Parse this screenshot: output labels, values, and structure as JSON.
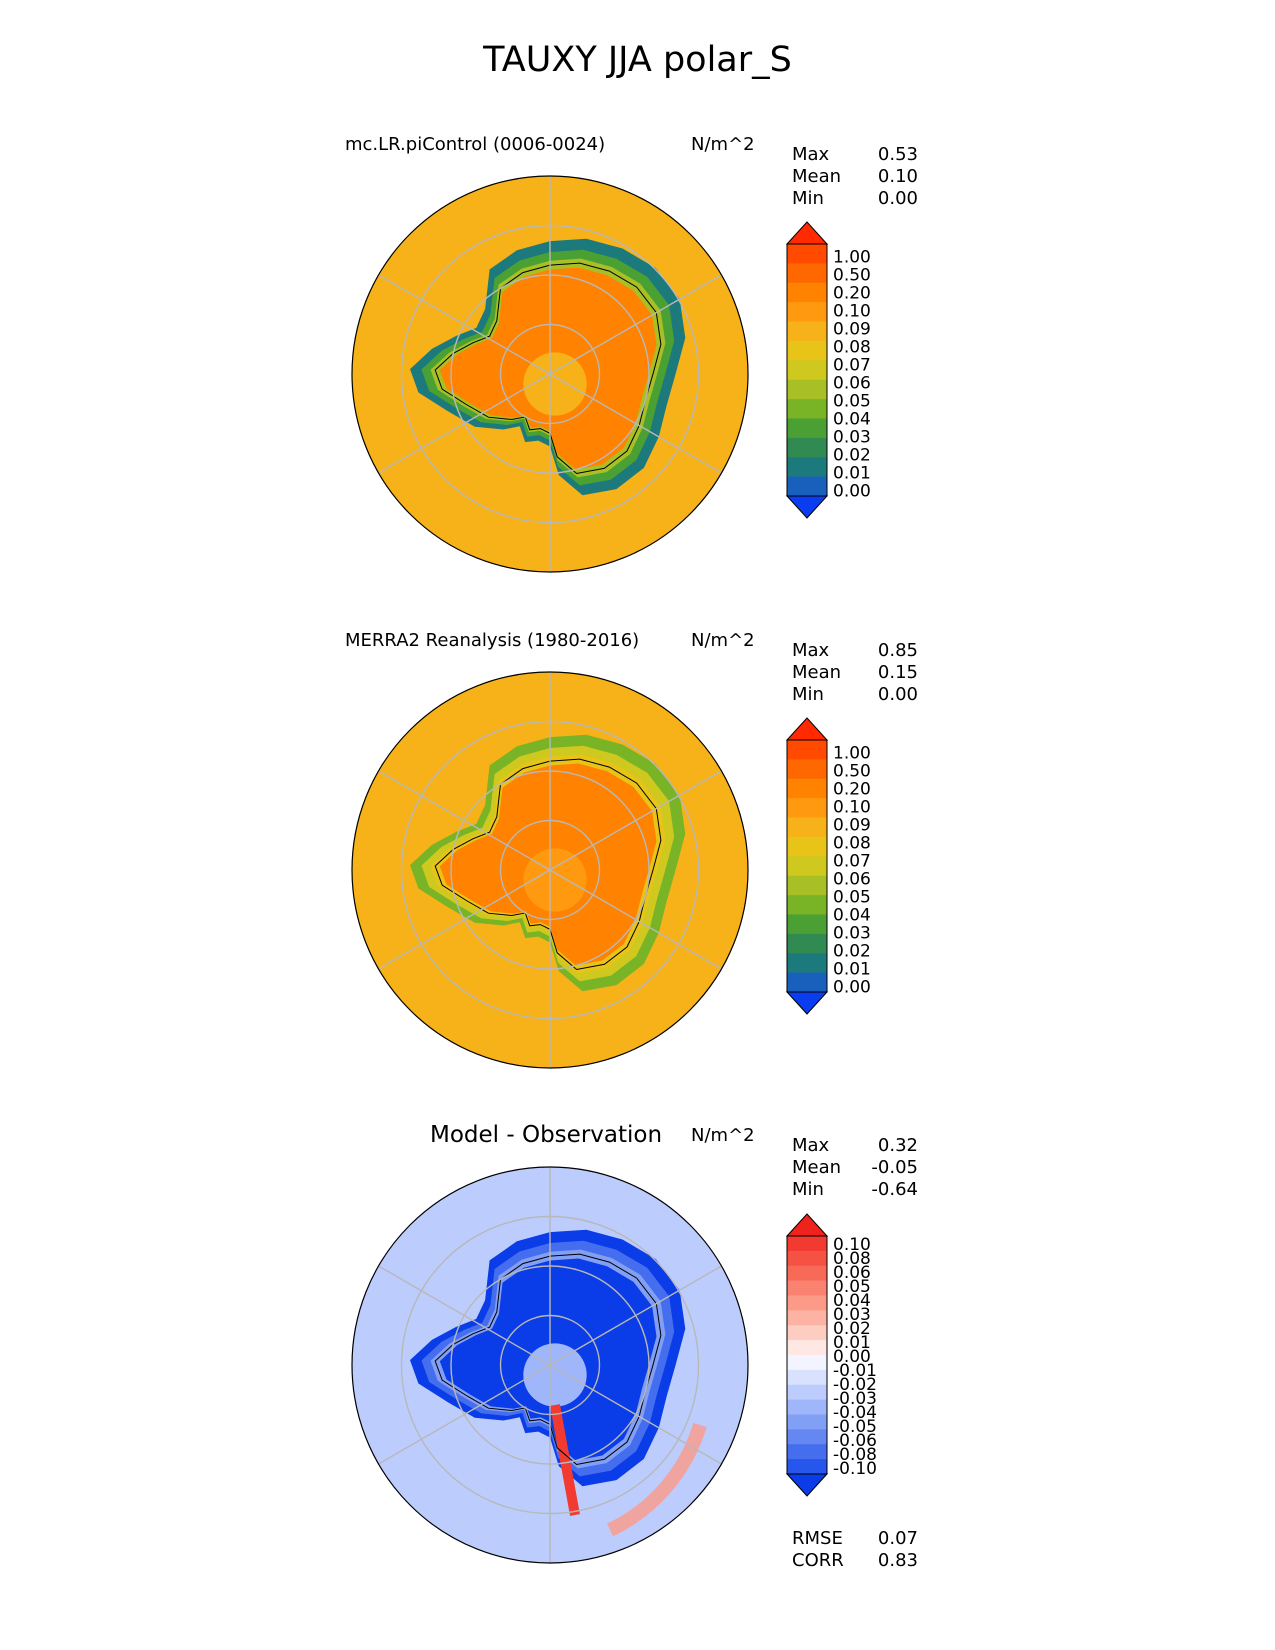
{
  "title": "TAUXY JJA polar_S",
  "panels": [
    {
      "id": "test",
      "title": "mc.LR.piControl (0006-0024)",
      "units": "N/m^2",
      "stats": [
        {
          "label": "Max",
          "value": "0.53"
        },
        {
          "label": "Mean",
          "value": "0.10"
        },
        {
          "label": "Min",
          "value": "0.00"
        }
      ],
      "colorbar": {
        "labels": [
          "1.00",
          "0.50",
          "0.20",
          "0.10",
          "0.09",
          "0.08",
          "0.07",
          "0.06",
          "0.05",
          "0.04",
          "0.03",
          "0.02",
          "0.01",
          "0.00"
        ],
        "colors": [
          "#ff2a00",
          "#ff4a00",
          "#ff6800",
          "#ff8200",
          "#ff9a10",
          "#f7b21a",
          "#e8c418",
          "#cfc81e",
          "#a8c026",
          "#79b426",
          "#4aa032",
          "#318a52",
          "#1c7a7c",
          "#1860bc",
          "#0a3cf0"
        ]
      },
      "field": "model"
    },
    {
      "id": "reference",
      "title": "MERRA2 Reanalysis (1980-2016)",
      "units": "N/m^2",
      "stats": [
        {
          "label": "Max",
          "value": "0.85"
        },
        {
          "label": "Mean",
          "value": "0.15"
        },
        {
          "label": "Min",
          "value": "0.00"
        }
      ],
      "colorbar": {
        "labels": [
          "1.00",
          "0.50",
          "0.20",
          "0.10",
          "0.09",
          "0.08",
          "0.07",
          "0.06",
          "0.05",
          "0.04",
          "0.03",
          "0.02",
          "0.01",
          "0.00"
        ],
        "colors": [
          "#ff2a00",
          "#ff4a00",
          "#ff6800",
          "#ff8200",
          "#ff9a10",
          "#f7b21a",
          "#e8c418",
          "#cfc81e",
          "#a8c026",
          "#79b426",
          "#4aa032",
          "#318a52",
          "#1c7a7c",
          "#1860bc",
          "#0a3cf0"
        ]
      },
      "field": "obs"
    },
    {
      "id": "diff",
      "title": "Model - Observation",
      "units": "N/m^2",
      "stats": [
        {
          "label": "Max",
          "value": "0.32"
        },
        {
          "label": "Mean",
          "value": "-0.05"
        },
        {
          "label": "Min",
          "value": "-0.64"
        }
      ],
      "metrics": [
        {
          "label": "RMSE",
          "value": "0.07"
        },
        {
          "label": "CORR",
          "value": "0.83"
        }
      ],
      "colorbar": {
        "labels": [
          "0.10",
          "0.08",
          "0.06",
          "0.05",
          "0.04",
          "0.03",
          "0.02",
          "0.01",
          "0.00",
          "-0.01",
          "-0.02",
          "-0.03",
          "-0.04",
          "-0.05",
          "-0.06",
          "-0.08",
          "-0.10"
        ],
        "colors": [
          "#f0221c",
          "#f23a30",
          "#f55244",
          "#f86a58",
          "#fa8270",
          "#fc9a88",
          "#fdb3a3",
          "#fecdc2",
          "#ffe8e3",
          "#f2f4ff",
          "#d8e2ff",
          "#bccdfd",
          "#9fb6fa",
          "#829ff6",
          "#6487f2",
          "#456eef",
          "#2656ec",
          "#0a3ce8"
        ]
      },
      "field": "diff"
    }
  ],
  "chart_data": {
    "type": "heatmap",
    "title": "TAUXY JJA polar_S",
    "projection": "south polar stereographic",
    "variable": "TAUXY",
    "season": "JJA",
    "units": "N/m^2",
    "maps": [
      {
        "name": "mc.LR.piControl (0006-0024)",
        "max": 0.53,
        "mean": 0.1,
        "min": 0.0,
        "contour_levels": [
          0.0,
          0.01,
          0.02,
          0.03,
          0.04,
          0.05,
          0.06,
          0.07,
          0.08,
          0.09,
          0.1,
          0.2,
          0.5,
          1.0
        ]
      },
      {
        "name": "MERRA2 Reanalysis (1980-2016)",
        "max": 0.85,
        "mean": 0.15,
        "min": 0.0,
        "contour_levels": [
          0.0,
          0.01,
          0.02,
          0.03,
          0.04,
          0.05,
          0.06,
          0.07,
          0.08,
          0.09,
          0.1,
          0.2,
          0.5,
          1.0
        ]
      },
      {
        "name": "Model - Observation",
        "max": 0.32,
        "mean": -0.05,
        "min": -0.64,
        "rmse": 0.07,
        "corr": 0.83,
        "contour_levels": [
          -0.1,
          -0.08,
          -0.06,
          -0.05,
          -0.04,
          -0.03,
          -0.02,
          -0.01,
          0.0,
          0.01,
          0.02,
          0.03,
          0.04,
          0.05,
          0.06,
          0.08,
          0.1
        ]
      }
    ]
  }
}
